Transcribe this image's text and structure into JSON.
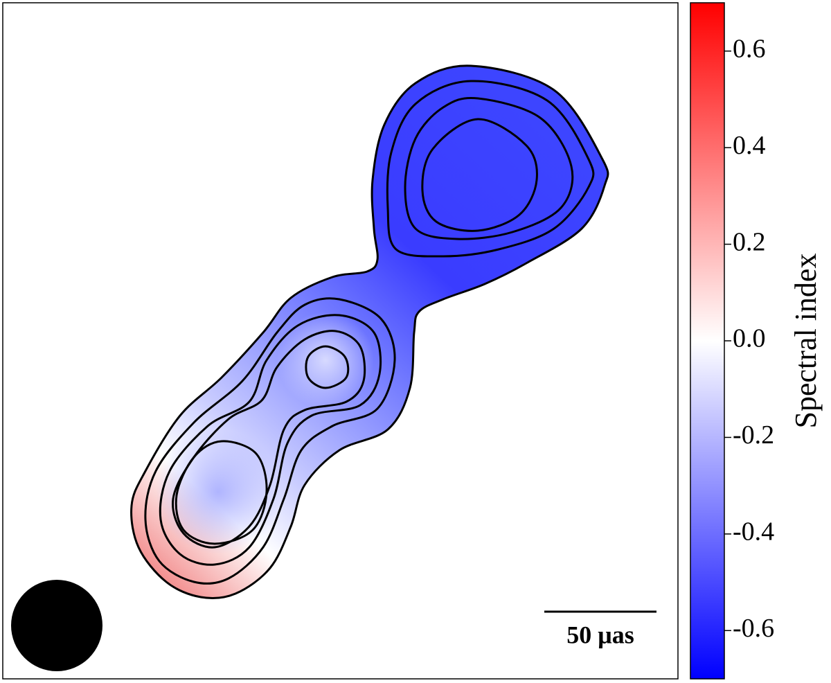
{
  "chart_data": {
    "type": "colorbar-map",
    "colorbar": {
      "label": "Spectral index",
      "clim": [
        -0.7,
        0.7
      ],
      "colormap": "bwr",
      "ticks": [
        -0.6,
        -0.4,
        -0.2,
        {
          "value": 0,
          "label": "0.0"
        },
        0.2,
        0.4,
        0.6
      ]
    },
    "scale_bar": "50 μas"
  }
}
